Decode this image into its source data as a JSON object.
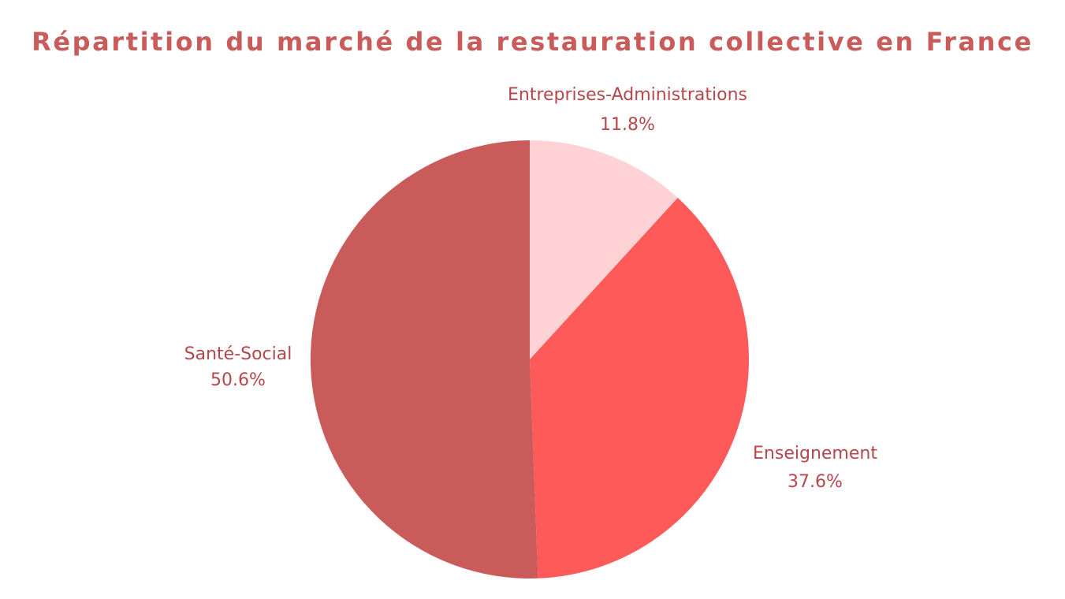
{
  "chart_data": {
    "type": "pie",
    "title": "Répartition du marché de la restauration collective en France",
    "slices": [
      {
        "label": "Entreprises-Administrations",
        "value": 11.8,
        "value_label": "11.8%",
        "color": "#ffd3d5"
      },
      {
        "label": "Enseignement",
        "value": 37.6,
        "value_label": "37.6%",
        "color": "#ff5a5a"
      },
      {
        "label": "Santé-Social",
        "value": 50.6,
        "value_label": "50.6%",
        "color": "#c95b5b"
      }
    ],
    "start": "12 o'clock",
    "direction": "clockwise",
    "label_color": "#b5474c",
    "title_color": "#c95b5b",
    "legend": "none"
  }
}
